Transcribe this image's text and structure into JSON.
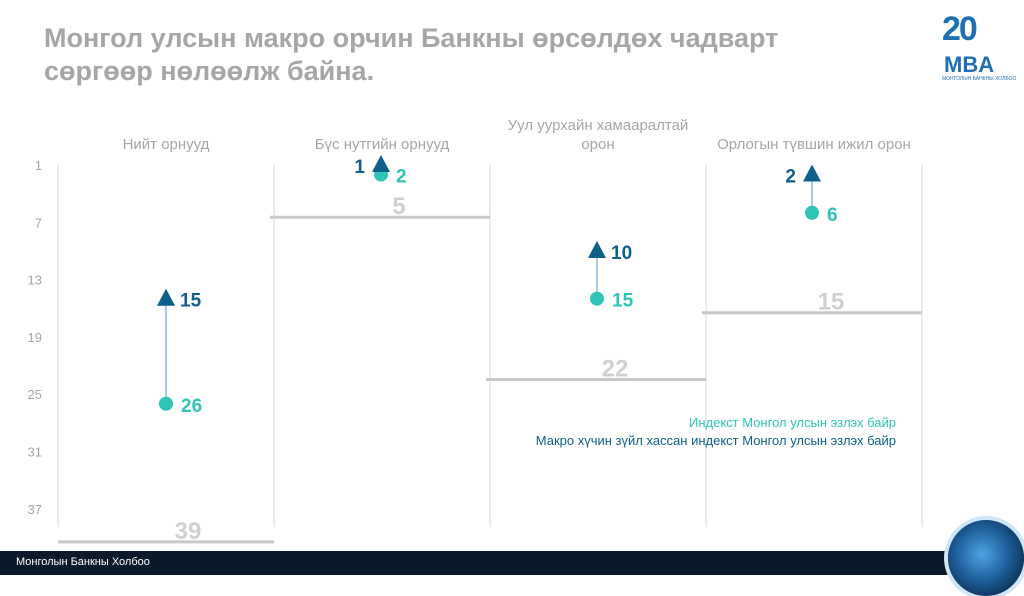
{
  "title": "Монгол улсын макро орчин Банкны өрсөлдөх чадварт сөргөөр нөлөөлж байна.",
  "logo": {
    "number": "20",
    "text": "MBA",
    "subtext": "МОНГОЛЫН БАНКНЫ ХОЛБОО"
  },
  "footer": {
    "org_name": "Монголын Банкны Холбоо"
  },
  "colors": {
    "index_rank": "#2ec4b6",
    "adjusted_rank": "#0e5f8a",
    "axis": "#a6a6a6",
    "grid": "#d9d9d9"
  },
  "chart_data": {
    "type": "scatter",
    "title": "",
    "xlabel": "",
    "ylabel": "",
    "y_ticks": [
      1,
      7,
      13,
      19,
      25,
      31,
      37
    ],
    "ylim": [
      1,
      39
    ],
    "y_inverted": true,
    "categories": [
      "Нийт орнууд",
      "Бүс нутгийн орнууд",
      "Уул уурхайн хамааралтай орон",
      "Орлогын түвшин ижил орон"
    ],
    "series": [
      {
        "name": "Индекст Монгол улсын эзлэх байр",
        "marker": "circle",
        "values": [
          26,
          2,
          15,
          6
        ]
      },
      {
        "name": "Макро хүчин зүйл хассан индекст Монгол улсын эзлэх байр",
        "marker": "triangle",
        "values": [
          15,
          1,
          10,
          2
        ]
      }
    ],
    "group_totals": [
      39,
      5,
      22,
      15
    ],
    "legend_position": "bottom-right"
  }
}
